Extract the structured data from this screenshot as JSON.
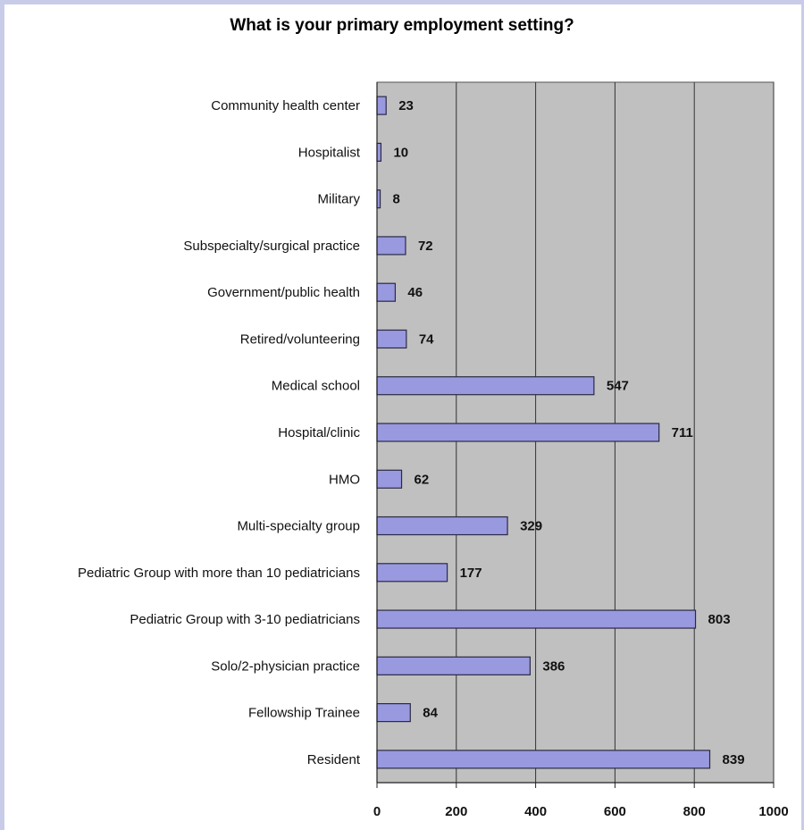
{
  "chart_data": {
    "type": "bar",
    "orientation": "horizontal",
    "title": "What is your primary employment setting?",
    "xlabel": "",
    "ylabel": "",
    "categories": [
      "Community health center",
      "Hospitalist",
      "Military",
      "Subspecialty/surgical practice",
      "Government/public health",
      "Retired/volunteering",
      "Medical school",
      "Hospital/clinic",
      "HMO",
      "Multi-specialty group",
      "Pediatric Group with more than 10 pediatricians",
      "Pediatric Group with 3-10 pediatricians",
      "Solo/2-physician practice",
      "Fellowship Trainee",
      "Resident"
    ],
    "values": [
      23,
      10,
      8,
      72,
      46,
      74,
      547,
      711,
      62,
      329,
      177,
      803,
      386,
      84,
      839
    ],
    "xlim": [
      0,
      1000
    ],
    "ticks": [
      0,
      200,
      400,
      600,
      800,
      1000
    ],
    "grid": true,
    "legend": "none",
    "colors": {
      "bar_fill": "#9999e0",
      "bar_stroke": "#2a2a44",
      "plot_background": "#c0c0c0",
      "gridline": "#333333",
      "frame": "#c8cce8"
    }
  }
}
